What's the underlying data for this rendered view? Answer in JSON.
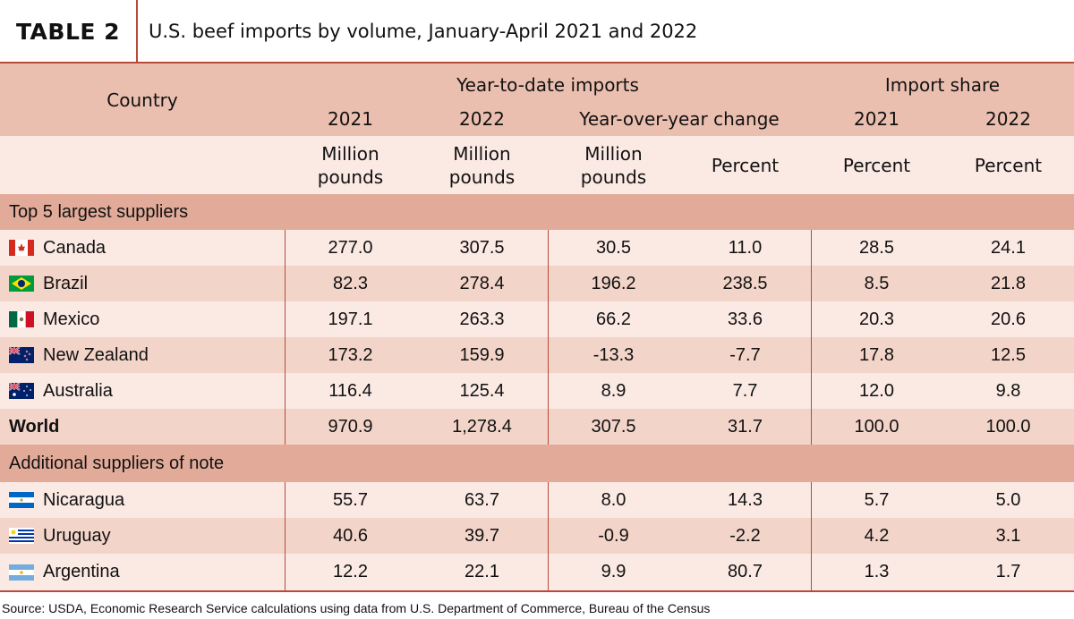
{
  "title_bar": {
    "label": "TABLE 2",
    "title": "U.S. beef imports by volume, January-April 2021 and 2022"
  },
  "header": {
    "country": "Country",
    "ytd": "Year-to-date imports",
    "share": "Import share",
    "y2021": "2021",
    "y2022": "2022",
    "yoy": "Year-over-year change",
    "s2021": "2021",
    "s2022": "2022",
    "units": {
      "c2021_a": "Million",
      "c2021_b": "pounds",
      "c2022_a": "Million",
      "c2022_b": "pounds",
      "cchg_a": "Million",
      "cchg_b": "pounds",
      "cpct": "Percent",
      "s2021": "Percent",
      "s2022": "Percent"
    }
  },
  "sections": {
    "top": "Top 5 largest suppliers",
    "additional": "Additional suppliers of note"
  },
  "top5": [
    {
      "country": "Canada",
      "flag": "canada-flag-icon",
      "v2021": "277.0",
      "v2022": "307.5",
      "chg": "30.5",
      "pct": "11.0",
      "s2021": "28.5",
      "s2022": "24.1"
    },
    {
      "country": "Brazil",
      "flag": "brazil-flag-icon",
      "v2021": "82.3",
      "v2022": "278.4",
      "chg": "196.2",
      "pct": "238.5",
      "s2021": "8.5",
      "s2022": "21.8"
    },
    {
      "country": "Mexico",
      "flag": "mexico-flag-icon",
      "v2021": "197.1",
      "v2022": "263.3",
      "chg": "66.2",
      "pct": "33.6",
      "s2021": "20.3",
      "s2022": "20.6"
    },
    {
      "country": "New Zealand",
      "flag": "new-zealand-flag-icon",
      "v2021": "173.2",
      "v2022": "159.9",
      "chg": "-13.3",
      "pct": "-7.7",
      "s2021": "17.8",
      "s2022": "12.5"
    },
    {
      "country": "Australia",
      "flag": "australia-flag-icon",
      "v2021": "116.4",
      "v2022": "125.4",
      "chg": "8.9",
      "pct": "7.7",
      "s2021": "12.0",
      "s2022": "9.8"
    }
  ],
  "world": {
    "country": "World",
    "v2021": "970.9",
    "v2022": "1,278.4",
    "chg": "307.5",
    "pct": "31.7",
    "s2021": "100.0",
    "s2022": "100.0"
  },
  "additional": [
    {
      "country": "Nicaragua",
      "flag": "nicaragua-flag-icon",
      "v2021": "55.7",
      "v2022": "63.7",
      "chg": "8.0",
      "pct": "14.3",
      "s2021": "5.7",
      "s2022": "5.0"
    },
    {
      "country": "Uruguay",
      "flag": "uruguay-flag-icon",
      "v2021": "40.6",
      "v2022": "39.7",
      "chg": "-0.9",
      "pct": "-2.2",
      "s2021": "4.2",
      "s2022": "3.1"
    },
    {
      "country": "Argentina",
      "flag": "argentina-flag-icon",
      "v2021": "12.2",
      "v2022": "22.1",
      "chg": "9.9",
      "pct": "80.7",
      "s2021": "1.3",
      "s2022": "1.7"
    }
  ],
  "source": "Source: USDA, Economic Research Service calculations using data from U.S. Department of Commerce, Bureau of the Census",
  "colors": {
    "accent": "#b84a3c",
    "header": "#ebbfb0",
    "section": "#e2ab99",
    "row_light": "#fbe9e3",
    "row_dark": "#f3d4c9"
  }
}
